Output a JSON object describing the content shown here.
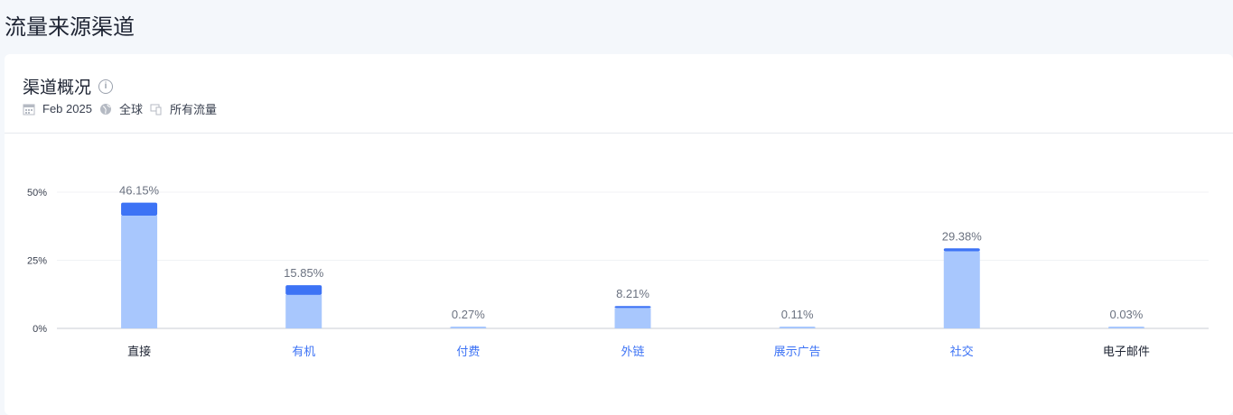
{
  "page_title": "流量来源渠道",
  "card": {
    "title": "渠道概况",
    "info_icon": "info-icon",
    "filters": [
      {
        "icon": "calendar-icon",
        "label": "Feb 2025"
      },
      {
        "icon": "globe-icon",
        "label": "全球"
      },
      {
        "icon": "devices-icon",
        "label": "所有流量"
      }
    ]
  },
  "chart_data": {
    "type": "bar",
    "stacked": true,
    "categories": [
      "直接",
      "有机",
      "付费",
      "外链",
      "展示广告",
      "社交",
      "电子邮件"
    ],
    "category_link": [
      false,
      true,
      true,
      true,
      true,
      true,
      false
    ],
    "totals": [
      46.15,
      15.85,
      0.27,
      8.21,
      0.11,
      29.38,
      0.03
    ],
    "data_labels": [
      "46.15%",
      "15.85%",
      "0.27%",
      "8.21%",
      "0.11%",
      "29.38%",
      "0.03%"
    ],
    "series": [
      {
        "values": [
          41.4,
          12.3,
          0.27,
          7.5,
          0.11,
          28.3,
          0.03
        ],
        "color": "#a8c7fd"
      },
      {
        "values": [
          4.75,
          3.55,
          0,
          0.71,
          0,
          1.08,
          0
        ],
        "color": "#3d73f5"
      }
    ],
    "yticks": [
      "0%",
      "25%",
      "50%"
    ],
    "ylim": [
      0,
      50
    ],
    "grid": true,
    "link_color": "#3d73f5"
  }
}
